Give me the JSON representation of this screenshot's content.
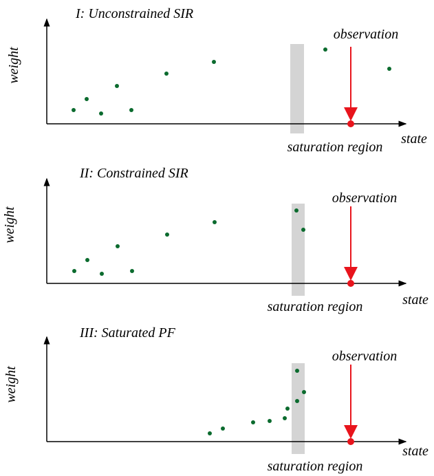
{
  "panels": [
    {
      "title": "I: Unconstrained SIR",
      "y_label": "weight",
      "x_label": "state",
      "observation": "observation",
      "saturation": "saturation region"
    },
    {
      "title": "II: Constrained SIR",
      "y_label": "weight",
      "x_label": "state",
      "observation": "observation",
      "saturation": "saturation region"
    },
    {
      "title": "III: Saturated PF",
      "y_label": "weight",
      "x_label": "state",
      "observation": "observation",
      "saturation": "saturation region"
    }
  ]
}
